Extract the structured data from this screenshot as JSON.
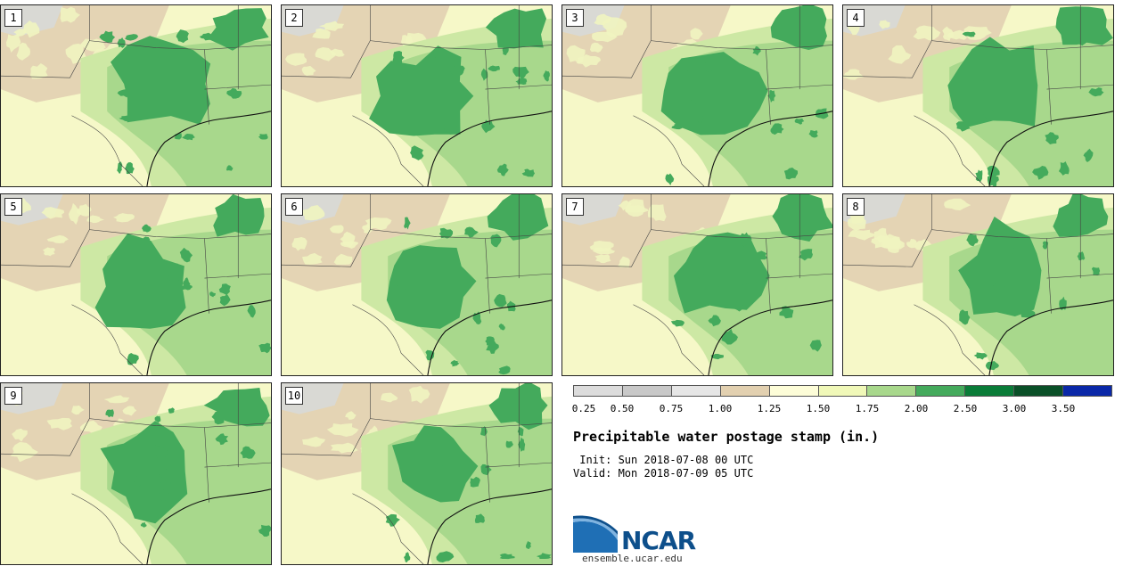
{
  "stamps": [
    {
      "label": "1"
    },
    {
      "label": "2"
    },
    {
      "label": "3"
    },
    {
      "label": "4"
    },
    {
      "label": "5"
    },
    {
      "label": "6"
    },
    {
      "label": "7"
    },
    {
      "label": "8"
    },
    {
      "label": "9"
    },
    {
      "label": "10"
    }
  ],
  "colorbar": {
    "colors": [
      "#dcdcdc",
      "#c8c8c8",
      "#e6e6e6",
      "#e2d0b0",
      "#fdfdd8",
      "#f0f8b8",
      "#a8d88c",
      "#44aa5c",
      "#0a7c38",
      "#0a5028",
      "#0a28a8"
    ],
    "tick_labels": [
      "0.25",
      "0.50",
      "0.75",
      "1.00",
      "1.25",
      "1.50",
      "1.75",
      "2.00",
      "2.50",
      "3.00",
      "3.50"
    ]
  },
  "title": "Precipitable water postage stamp (in.)",
  "init_text": " Init: Sun 2018-07-08 00 UTC",
  "valid_text": "Valid: Mon 2018-07-09 05 UTC",
  "logo": {
    "text": "NCAR",
    "icon": "ncar-logo-icon"
  },
  "website": "ensemble.ucar.edu"
}
